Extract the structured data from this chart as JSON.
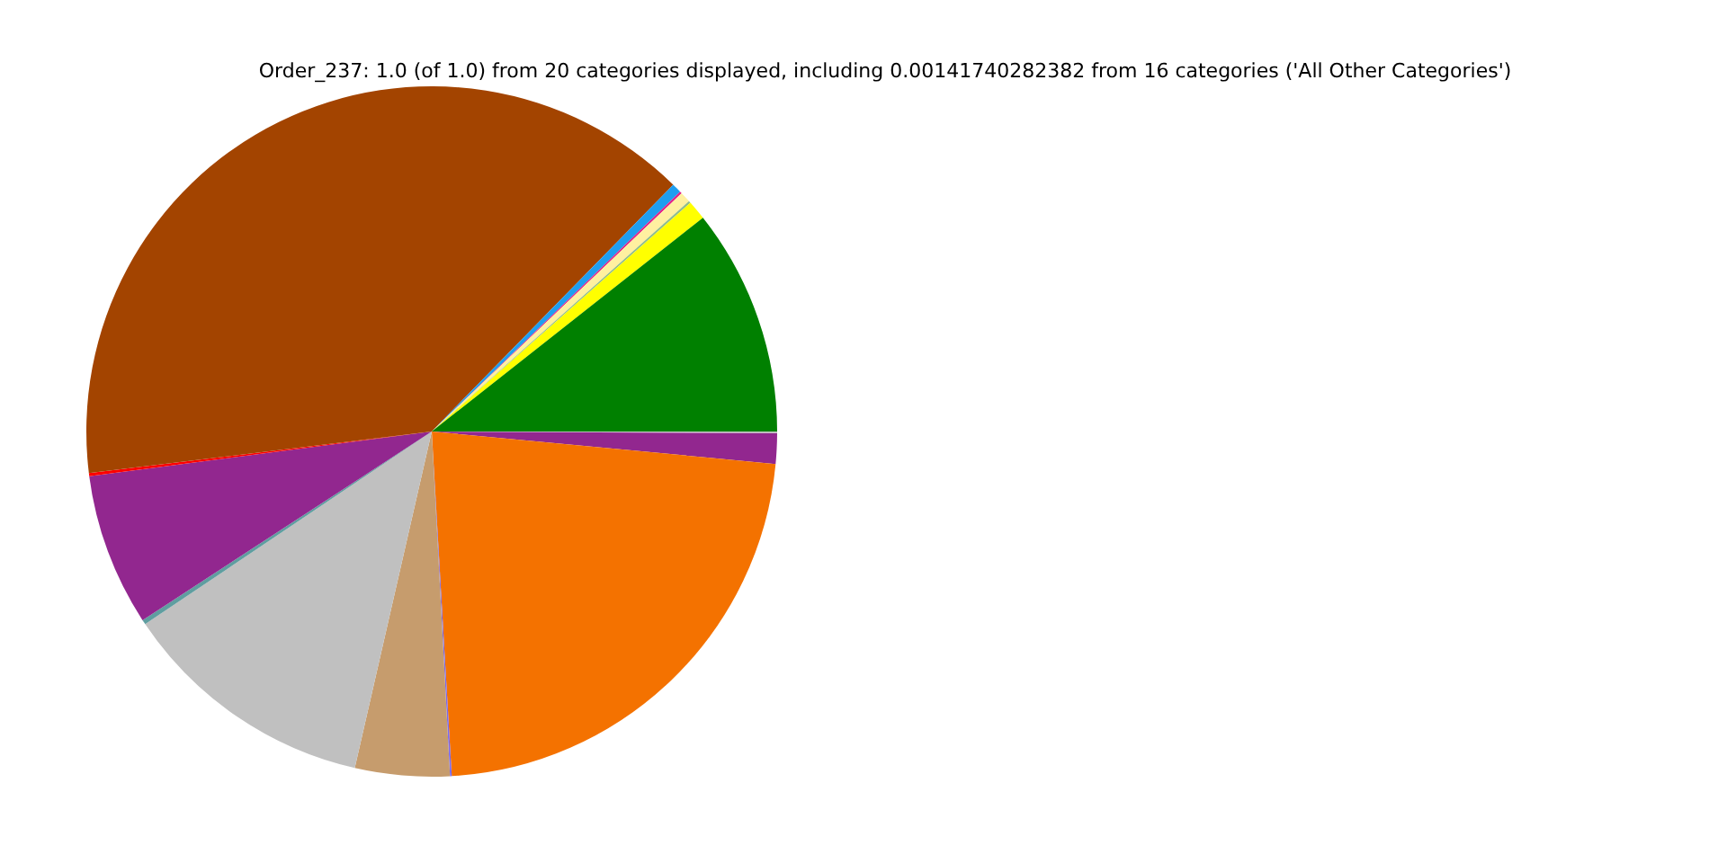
{
  "chart_data": {
    "type": "pie",
    "title": "Order_237: 1.0 (of 1.0) from 20 categories displayed, including 0.00141740282382 from 16 categories ('All Other Categories')",
    "categories": [
      null,
      null,
      null,
      null,
      null,
      null,
      null,
      null,
      null,
      null,
      null,
      null,
      null,
      null,
      null,
      null
    ],
    "values": [
      0.08,
      1.42,
      22.58,
      0.08,
      4.42,
      12.0,
      0.22,
      7.14,
      0.14,
      39.25,
      0.45,
      0.1,
      0.5,
      0.1,
      0.9,
      10.63
    ],
    "colors": [
      "#c0c0c0",
      "#92278f",
      "#f47200",
      "#7b68ee",
      "#c69c6d",
      "#c0c0c0",
      "#5f9ea0",
      "#92278f",
      "#ff0000",
      "#a34400",
      "#1e9ef0",
      "#e0218a",
      "#fff0a0",
      "#8fbc8f",
      "#ffff00",
      "#008000"
    ]
  }
}
